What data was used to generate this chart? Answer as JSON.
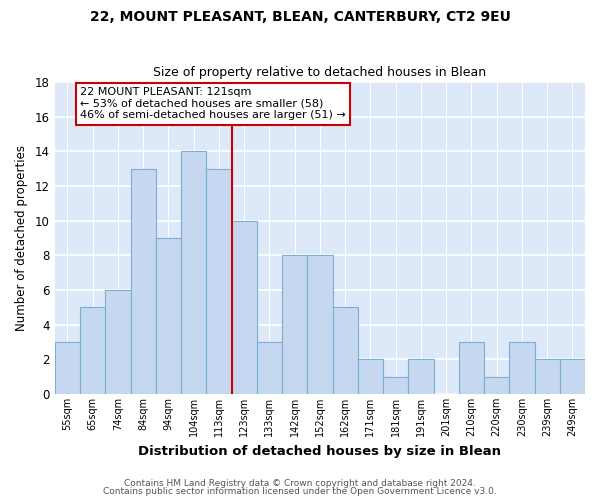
{
  "title": "22, MOUNT PLEASANT, BLEAN, CANTERBURY, CT2 9EU",
  "subtitle": "Size of property relative to detached houses in Blean",
  "xlabel": "Distribution of detached houses by size in Blean",
  "ylabel": "Number of detached properties",
  "bins": [
    "55sqm",
    "65sqm",
    "74sqm",
    "84sqm",
    "94sqm",
    "104sqm",
    "113sqm",
    "123sqm",
    "133sqm",
    "142sqm",
    "152sqm",
    "162sqm",
    "171sqm",
    "181sqm",
    "191sqm",
    "201sqm",
    "210sqm",
    "220sqm",
    "230sqm",
    "239sqm",
    "249sqm"
  ],
  "values": [
    3,
    5,
    6,
    13,
    9,
    14,
    13,
    10,
    3,
    8,
    8,
    5,
    2,
    1,
    2,
    0,
    3,
    1,
    3,
    2,
    2
  ],
  "bar_color": "#c5d8f0",
  "bar_edge_color": "#7aafd4",
  "vline_x_index": 7,
  "annotation_title": "22 MOUNT PLEASANT: 121sqm",
  "annotation_line1": "← 53% of detached houses are smaller (58)",
  "annotation_line2": "46% of semi-detached houses are larger (51) →",
  "annotation_box_color": "#ffffff",
  "annotation_border_color": "#cc0000",
  "vline_color": "#cc0000",
  "ylim": [
    0,
    18
  ],
  "yticks": [
    0,
    2,
    4,
    6,
    8,
    10,
    12,
    14,
    16,
    18
  ],
  "plot_bg_color": "#dde8f8",
  "fig_bg_color": "#ffffff",
  "grid_color": "#ffffff",
  "footer1": "Contains HM Land Registry data © Crown copyright and database right 2024.",
  "footer2": "Contains public sector information licensed under the Open Government Licence v3.0."
}
